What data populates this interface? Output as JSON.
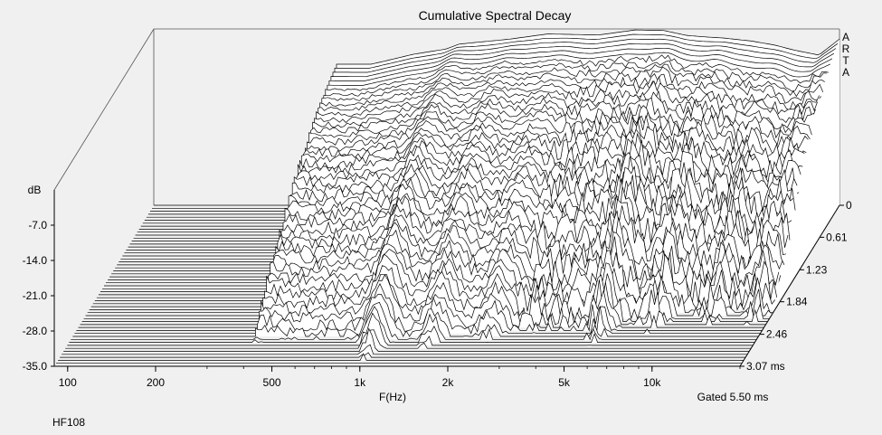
{
  "chart_data": {
    "type": "waterfall-3d",
    "title": "Cumulative Spectral Decay",
    "xlabel": "F(Hz)",
    "ylabel": "dB",
    "zlabel": "",
    "x_scale": "log",
    "xlim": [
      90,
      20000
    ],
    "ylim": [
      -35.0,
      0
    ],
    "zlim": [
      0,
      3.07
    ],
    "x_ticks": [
      100,
      200,
      500,
      1000,
      2000,
      5000,
      10000
    ],
    "x_tick_labels": [
      "100",
      "200",
      "500",
      "1k",
      "2k",
      "5k",
      "10k"
    ],
    "y_ticks": [
      -7.0,
      -14.0,
      -21.0,
      -28.0,
      -35.0
    ],
    "y_tick_labels": [
      "-7.0",
      "-14.0",
      "-21.0",
      "-28.0",
      "-35.0"
    ],
    "z_ticks": [
      0,
      0.61,
      1.23,
      1.84,
      2.46,
      3.07
    ],
    "z_tick_labels": [
      "0",
      "0.61",
      "1.23",
      "1.84",
      "2.46",
      "3.07 ms"
    ],
    "slice_count": 55,
    "gate_label": "Gated 5.50 ms",
    "brand_label": "A\nR\nT\nA",
    "brand_letters": [
      "A",
      "R",
      "T",
      "A"
    ],
    "sample_label": "HF108",
    "line_color": "#000000",
    "fill_color": "#ffffff",
    "background_color": "#f0f0f0",
    "series": [
      {
        "time_ms": 0,
        "level_db": [
          [
            380,
            -22
          ],
          [
            380,
            -7
          ],
          [
            500,
            -7
          ],
          [
            700,
            -5
          ],
          [
            900,
            -4
          ],
          [
            1000,
            -3
          ],
          [
            1500,
            -2
          ],
          [
            2000,
            -1
          ],
          [
            3000,
            -1.2
          ],
          [
            4000,
            -0.2
          ],
          [
            5000,
            -0.3
          ],
          [
            6000,
            -1.3
          ],
          [
            7000,
            -1.6
          ],
          [
            8000,
            -1.8
          ],
          [
            10000,
            -2.4
          ],
          [
            12000,
            -3.2
          ],
          [
            14000,
            -4.2
          ],
          [
            17000,
            -5.2
          ],
          [
            20000,
            -2.0
          ]
        ]
      }
    ]
  }
}
